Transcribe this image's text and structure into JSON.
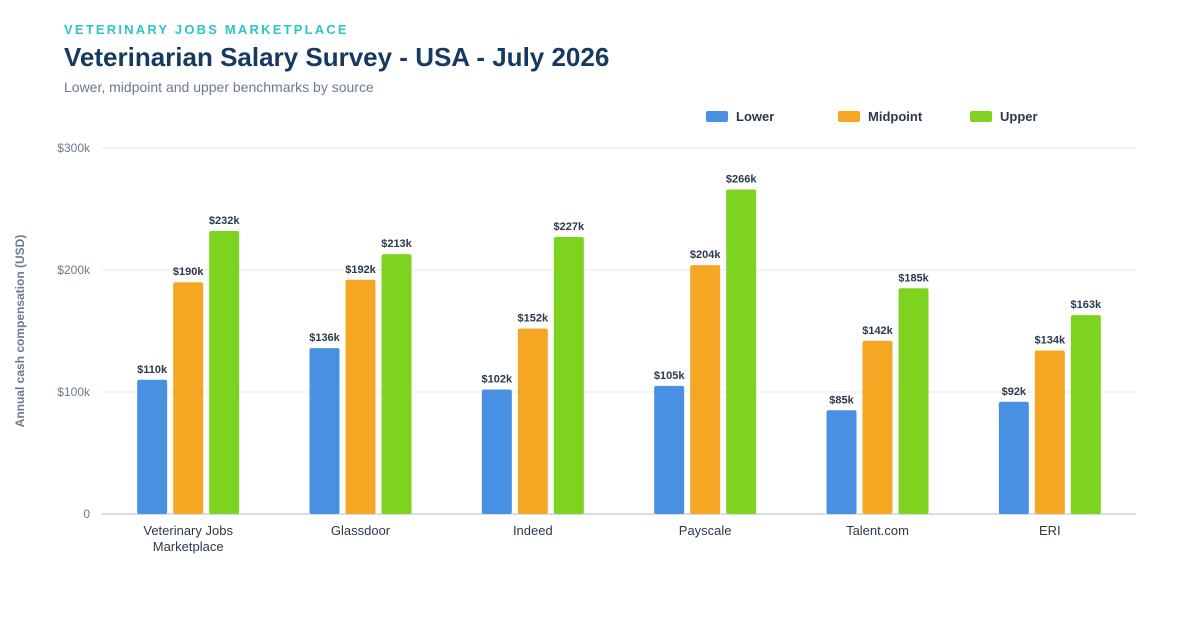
{
  "header": {
    "brand": "VETERINARY JOBS MARKETPLACE",
    "title": "Veterinarian Salary Survey - USA - July 2026",
    "subtitle": "Lower, midpoint and upper benchmarks by source"
  },
  "colors": {
    "Lower": "#4a90e2",
    "Midpoint": "#f5a623",
    "Upper": "#7ed321",
    "brand": "#2ec4c9",
    "title": "#163a5f"
  },
  "chart_data": {
    "type": "bar",
    "categories": [
      [
        "Veterinary Jobs",
        "Marketplace"
      ],
      [
        "Glassdoor"
      ],
      [
        "Indeed"
      ],
      [
        "Payscale"
      ],
      [
        "Talent.com"
      ],
      [
        "ERI"
      ]
    ],
    "series": [
      {
        "name": "Lower",
        "values": [
          110,
          136,
          102,
          105,
          85,
          92
        ],
        "labels": [
          "$110k",
          "$136k",
          "$102k",
          "$105k",
          "$85k",
          "$92k"
        ]
      },
      {
        "name": "Midpoint",
        "values": [
          190,
          192,
          152,
          204,
          142,
          134
        ],
        "labels": [
          "$190k",
          "$192k",
          "$152k",
          "$204k",
          "$142k",
          "$134k"
        ]
      },
      {
        "name": "Upper",
        "values": [
          232,
          213,
          227,
          266,
          185,
          163
        ],
        "labels": [
          "$232k",
          "$213k",
          "$227k",
          "$266k",
          "$185k",
          "$163k"
        ]
      }
    ],
    "ylabel": "Annual cash compensation (USD)",
    "ylim": [
      0,
      300
    ],
    "yticks": [
      {
        "value": 0,
        "label": "0"
      },
      {
        "value": 100,
        "label": "$100k"
      },
      {
        "value": 200,
        "label": "$200k"
      },
      {
        "value": 300,
        "label": "$300k"
      }
    ],
    "grid": true,
    "legend_position": "top-right"
  }
}
